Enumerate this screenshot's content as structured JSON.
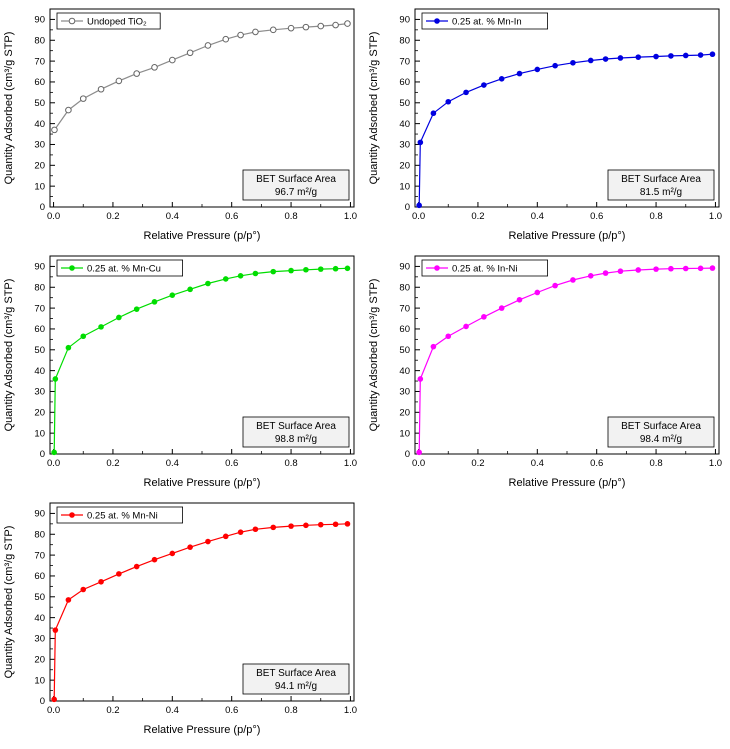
{
  "figure": {
    "xlabel": "Relative Pressure (p/p°)",
    "ylabel": "Quantity Adsorbed (cm³/g STP)",
    "bet_title": "BET Surface Area"
  },
  "chart_data": [
    {
      "type": "line",
      "legend": "Undoped TiO₂",
      "color": "#8c8c8c",
      "marker": "open-circle",
      "bet_label": "BET Surface Area",
      "bet_value": "96.7 m²/g",
      "xlabel": "Relative Pressure (p/p°)",
      "ylabel": "Quantity Adsorbed (cm³/g STP)",
      "xlim": [
        -0.012,
        1.012
      ],
      "ylim": [
        0,
        95
      ],
      "xticks": [
        0.0,
        0.2,
        0.4,
        0.6,
        0.8,
        1.0
      ],
      "yticks": [
        0,
        10,
        20,
        30,
        40,
        50,
        60,
        70,
        80,
        90
      ],
      "x": [
        0.003,
        0.05,
        0.1,
        0.16,
        0.22,
        0.28,
        0.34,
        0.4,
        0.46,
        0.52,
        0.58,
        0.63,
        0.68,
        0.74,
        0.8,
        0.85,
        0.9,
        0.95,
        0.99
      ],
      "y": [
        37,
        46.5,
        52,
        56.5,
        60.5,
        64,
        67,
        70.5,
        74,
        77.5,
        80.5,
        82.5,
        84,
        85,
        85.8,
        86.3,
        86.8,
        87.3,
        88
      ]
    },
    {
      "type": "line",
      "legend": "0.25 at. % Mn-In",
      "color": "#0000e0",
      "marker": "filled-circle",
      "bet_label": "BET Surface Area",
      "bet_value": "81.5 m²/g",
      "xlabel": "Relative Pressure (p/p°)",
      "ylabel": "Quantity Adsorbed (cm³/g STP)",
      "xlim": [
        -0.012,
        1.012
      ],
      "ylim": [
        0,
        95
      ],
      "xticks": [
        0.0,
        0.2,
        0.4,
        0.6,
        0.8,
        1.0
      ],
      "yticks": [
        0,
        10,
        20,
        30,
        40,
        50,
        60,
        70,
        80,
        90
      ],
      "x": [
        0.002,
        0.006,
        0.05,
        0.1,
        0.16,
        0.22,
        0.28,
        0.34,
        0.4,
        0.46,
        0.52,
        0.58,
        0.63,
        0.68,
        0.74,
        0.8,
        0.85,
        0.9,
        0.95,
        0.99
      ],
      "y": [
        0.8,
        31,
        45,
        50.5,
        55,
        58.5,
        61.5,
        64,
        66,
        67.8,
        69.2,
        70.3,
        71,
        71.5,
        71.9,
        72.2,
        72.5,
        72.7,
        72.9,
        73.3
      ]
    },
    {
      "type": "line",
      "legend": "0.25 at. % Mn-Cu",
      "color": "#00dd00",
      "marker": "filled-circle",
      "bet_label": "BET Surface Area",
      "bet_value": "98.8 m²/g",
      "xlabel": "Relative Pressure (p/p°)",
      "ylabel": "Quantity Adsorbed (cm³/g STP)",
      "xlim": [
        -0.012,
        1.012
      ],
      "ylim": [
        0,
        95
      ],
      "xticks": [
        0.0,
        0.2,
        0.4,
        0.6,
        0.8,
        1.0
      ],
      "yticks": [
        0,
        10,
        20,
        30,
        40,
        50,
        60,
        70,
        80,
        90
      ],
      "x": [
        0.002,
        0.006,
        0.05,
        0.1,
        0.16,
        0.22,
        0.28,
        0.34,
        0.4,
        0.46,
        0.52,
        0.58,
        0.63,
        0.68,
        0.74,
        0.8,
        0.85,
        0.9,
        0.95,
        0.99
      ],
      "y": [
        0.8,
        36,
        51,
        56.5,
        61,
        65.5,
        69.5,
        73,
        76.2,
        79,
        81.8,
        84,
        85.5,
        86.6,
        87.5,
        88,
        88.4,
        88.7,
        88.9,
        89.1
      ]
    },
    {
      "type": "line",
      "legend": "0.25 at. % In-Ni",
      "color": "#ff00ff",
      "marker": "filled-circle",
      "bet_label": "BET Surface Area",
      "bet_value": "98.4 m²/g",
      "xlabel": "Relative Pressure (p/p°)",
      "ylabel": "Quantity Adsorbed (cm³/g STP)",
      "xlim": [
        -0.012,
        1.012
      ],
      "ylim": [
        0,
        95
      ],
      "xticks": [
        0.0,
        0.2,
        0.4,
        0.6,
        0.8,
        1.0
      ],
      "yticks": [
        0,
        10,
        20,
        30,
        40,
        50,
        60,
        70,
        80,
        90
      ],
      "x": [
        0.002,
        0.006,
        0.05,
        0.1,
        0.16,
        0.22,
        0.28,
        0.34,
        0.4,
        0.46,
        0.52,
        0.58,
        0.63,
        0.68,
        0.74,
        0.8,
        0.85,
        0.9,
        0.95,
        0.99
      ],
      "y": [
        0.8,
        36,
        51.5,
        56.5,
        61.2,
        65.8,
        70,
        74,
        77.5,
        80.8,
        83.5,
        85.5,
        86.8,
        87.7,
        88.3,
        88.7,
        88.9,
        89,
        89.1,
        89.2
      ]
    },
    {
      "type": "line",
      "legend": "0.25 at. % Mn-Ni",
      "color": "#ff0000",
      "marker": "filled-circle",
      "bet_label": "BET Surface Area",
      "bet_value": "94.1 m²/g",
      "xlabel": "Relative Pressure (p/p°)",
      "ylabel": "Quantity Adsorbed (cm³/g STP)",
      "xlim": [
        -0.012,
        1.012
      ],
      "ylim": [
        0,
        95
      ],
      "xticks": [
        0.0,
        0.2,
        0.4,
        0.6,
        0.8,
        1.0
      ],
      "yticks": [
        0,
        10,
        20,
        30,
        40,
        50,
        60,
        70,
        80,
        90
      ],
      "x": [
        0.002,
        0.006,
        0.05,
        0.1,
        0.16,
        0.22,
        0.28,
        0.34,
        0.4,
        0.46,
        0.52,
        0.58,
        0.63,
        0.68,
        0.74,
        0.8,
        0.85,
        0.9,
        0.95,
        0.99
      ],
      "y": [
        0.8,
        34,
        48.5,
        53.5,
        57.2,
        61,
        64.5,
        67.8,
        70.8,
        73.8,
        76.5,
        79,
        81,
        82.4,
        83.3,
        83.9,
        84.3,
        84.6,
        84.8,
        85
      ]
    }
  ]
}
